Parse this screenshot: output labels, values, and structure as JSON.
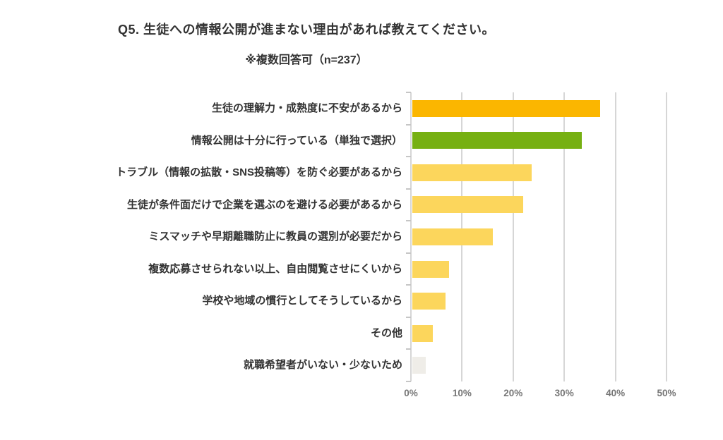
{
  "header": {
    "title": "Q5. 生徒への情報公開が進まない理由があれば教えてください。",
    "subtitle": "※複数回答可（n=237）"
  },
  "chart_data": {
    "type": "bar",
    "orientation": "horizontal",
    "title": "Q5. 生徒への情報公開が進まない理由があれば教えてください。",
    "subtitle": "※複数回答可（n=237）",
    "n": 237,
    "categories": [
      "生徒の理解力・成熟度に不安があるから",
      "情報公開は十分に行っている（単独で選択）",
      "トラブル（情報の拡散・SNS投稿等）を防ぐ必要があるから",
      "生徒が条件面だけで企業を選ぶのを避ける必要があるから",
      "ミスマッチや早期離職防止に教員の選別が必要だから",
      "複数応募させられない以上、自由閲覧させにくいから",
      "学校や地域の慣行としてそうしているから",
      "その他",
      "就職希望者がいない・少ないため"
    ],
    "values": [
      36.7,
      33.1,
      23.4,
      21.7,
      15.7,
      7.2,
      6.5,
      4.0,
      2.6
    ],
    "unit": "%",
    "bar_colors": [
      "#FBB600",
      "#76B012",
      "#FCD65C",
      "#FCD65C",
      "#FCD65C",
      "#FCD65C",
      "#FCD65C",
      "#FCD65C",
      "#EFEDE8"
    ],
    "xlabel": "",
    "ylabel": "",
    "xlim": [
      0,
      50
    ],
    "x_ticks": [
      "0%",
      "10%",
      "20%",
      "30%",
      "40%",
      "50%"
    ],
    "grid": true,
    "legend": false
  },
  "colors": {
    "text": "#333333",
    "gridline": "#d6d6d6",
    "axis": "#c6c6c6",
    "axis_text": "#767676",
    "background": "#ffffff"
  }
}
